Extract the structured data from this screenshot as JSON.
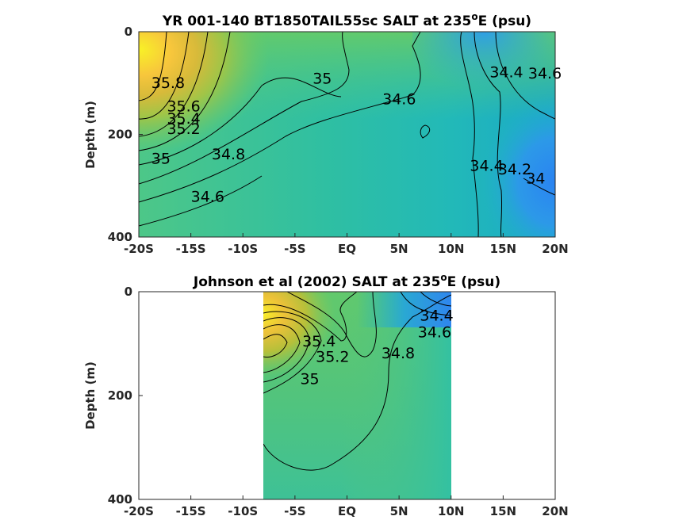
{
  "chart_data": [
    {
      "type": "heatmap",
      "subtype": "filled-contour",
      "title": "YR 001-140 BT1850TAIL55sc SALT at 235",
      "title_superscript": "o",
      "title_suffix": "E (psu)",
      "xlabel": "",
      "ylabel": "Depth (m)",
      "xlim": [
        -20,
        20
      ],
      "ylim": [
        0,
        400
      ],
      "y_reversed": true,
      "x_ticks": [
        -20,
        -15,
        -10,
        -5,
        0,
        5,
        10,
        15,
        20
      ],
      "x_tick_labels": [
        "-20S",
        "-15S",
        "-10S",
        "-5S",
        "EQ",
        "5N",
        "10N",
        "15N",
        "20N"
      ],
      "y_ticks": [
        0,
        200,
        400
      ],
      "y_tick_labels": [
        "0",
        "200",
        "400"
      ],
      "colormap": "parula",
      "contour_levels": [
        34,
        34.2,
        34.4,
        34.6,
        34.8,
        35,
        35.2,
        35.4,
        35.6,
        35.8
      ],
      "contour_labels": [
        {
          "text": "35.8",
          "x": -18.8,
          "y": 110
        },
        {
          "text": "35.6",
          "x": -17.3,
          "y": 155
        },
        {
          "text": "35.4",
          "x": -17.3,
          "y": 179
        },
        {
          "text": "35.2",
          "x": -17.3,
          "y": 199
        },
        {
          "text": "35",
          "x": -18.8,
          "y": 257
        },
        {
          "text": "34.8",
          "x": -13,
          "y": 249
        },
        {
          "text": "34.6",
          "x": -15,
          "y": 331
        },
        {
          "text": "35",
          "x": -3.3,
          "y": 101
        },
        {
          "text": "34.6",
          "x": 3.4,
          "y": 141
        },
        {
          "text": "34.4",
          "x": 13.7,
          "y": 89
        },
        {
          "text": "34.6",
          "x": 17.4,
          "y": 91
        },
        {
          "text": "34.4",
          "x": 11.8,
          "y": 271
        },
        {
          "text": "34.2",
          "x": 14.5,
          "y": 278
        },
        {
          "text": "34",
          "x": 17.2,
          "y": 296
        }
      ]
    },
    {
      "type": "heatmap",
      "subtype": "filled-contour",
      "title": "Johnson et al (2002) SALT at 235",
      "title_superscript": "o",
      "title_suffix": "E (psu)",
      "xlabel": "",
      "ylabel": "Depth (m)",
      "xlim": [
        -20,
        20
      ],
      "ylim": [
        0,
        400
      ],
      "y_reversed": true,
      "data_x_range": [
        -8,
        10
      ],
      "data_y_range": [
        0,
        400
      ],
      "x_ticks": [
        -20,
        -15,
        -10,
        -5,
        0,
        5,
        10,
        15,
        20
      ],
      "x_tick_labels": [
        "-20S",
        "-15S",
        "-10S",
        "-5S",
        "EQ",
        "5N",
        "10N",
        "15N",
        "20N"
      ],
      "y_ticks": [
        0,
        200,
        400
      ],
      "y_tick_labels": [
        "0",
        "200",
        "400"
      ],
      "colormap": "parula",
      "contour_levels": [
        34.4,
        34.6,
        34.8,
        35,
        35.2,
        35.4,
        35.6
      ],
      "contour_labels": [
        {
          "text": "35.4",
          "x": -4.3,
          "y": 105
        },
        {
          "text": "35.2",
          "x": -3.0,
          "y": 135
        },
        {
          "text": "35",
          "x": -4.5,
          "y": 178
        },
        {
          "text": "34.8",
          "x": 3.3,
          "y": 128
        },
        {
          "text": "34.4",
          "x": 7.0,
          "y": 56
        },
        {
          "text": "34.6",
          "x": 6.8,
          "y": 88
        }
      ]
    }
  ]
}
